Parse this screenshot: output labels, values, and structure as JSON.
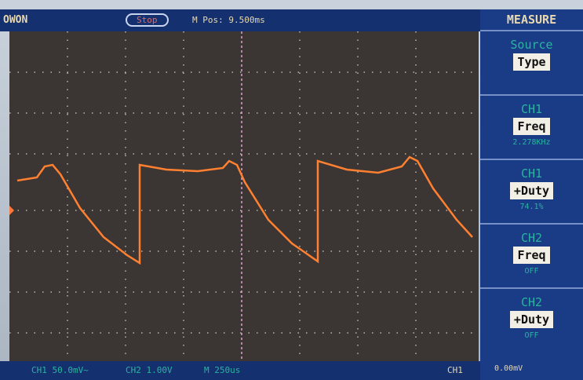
{
  "header": {
    "brand": "OWON",
    "state": "Stop",
    "position": "M Pos: 9.500ms"
  },
  "menu": {
    "title": "MEASURE",
    "items": [
      {
        "heading": "Source",
        "button": "Type"
      },
      {
        "heading": "CH1",
        "button": "Freq",
        "reading": "2.278KHz"
      },
      {
        "heading": "CH1",
        "button": "+Duty",
        "reading": "74.1%"
      },
      {
        "heading": "CH2",
        "button": "Freq",
        "reading": "OFF"
      },
      {
        "heading": "CH2",
        "button": "+Duty",
        "reading": "OFF"
      }
    ]
  },
  "footer": {
    "ch1": "CH1 50.0mV~",
    "ch2": "CH2 1.00V",
    "time": "M 250us",
    "trigger_source": "CH1",
    "trigger_level": "0.00mV"
  }
}
